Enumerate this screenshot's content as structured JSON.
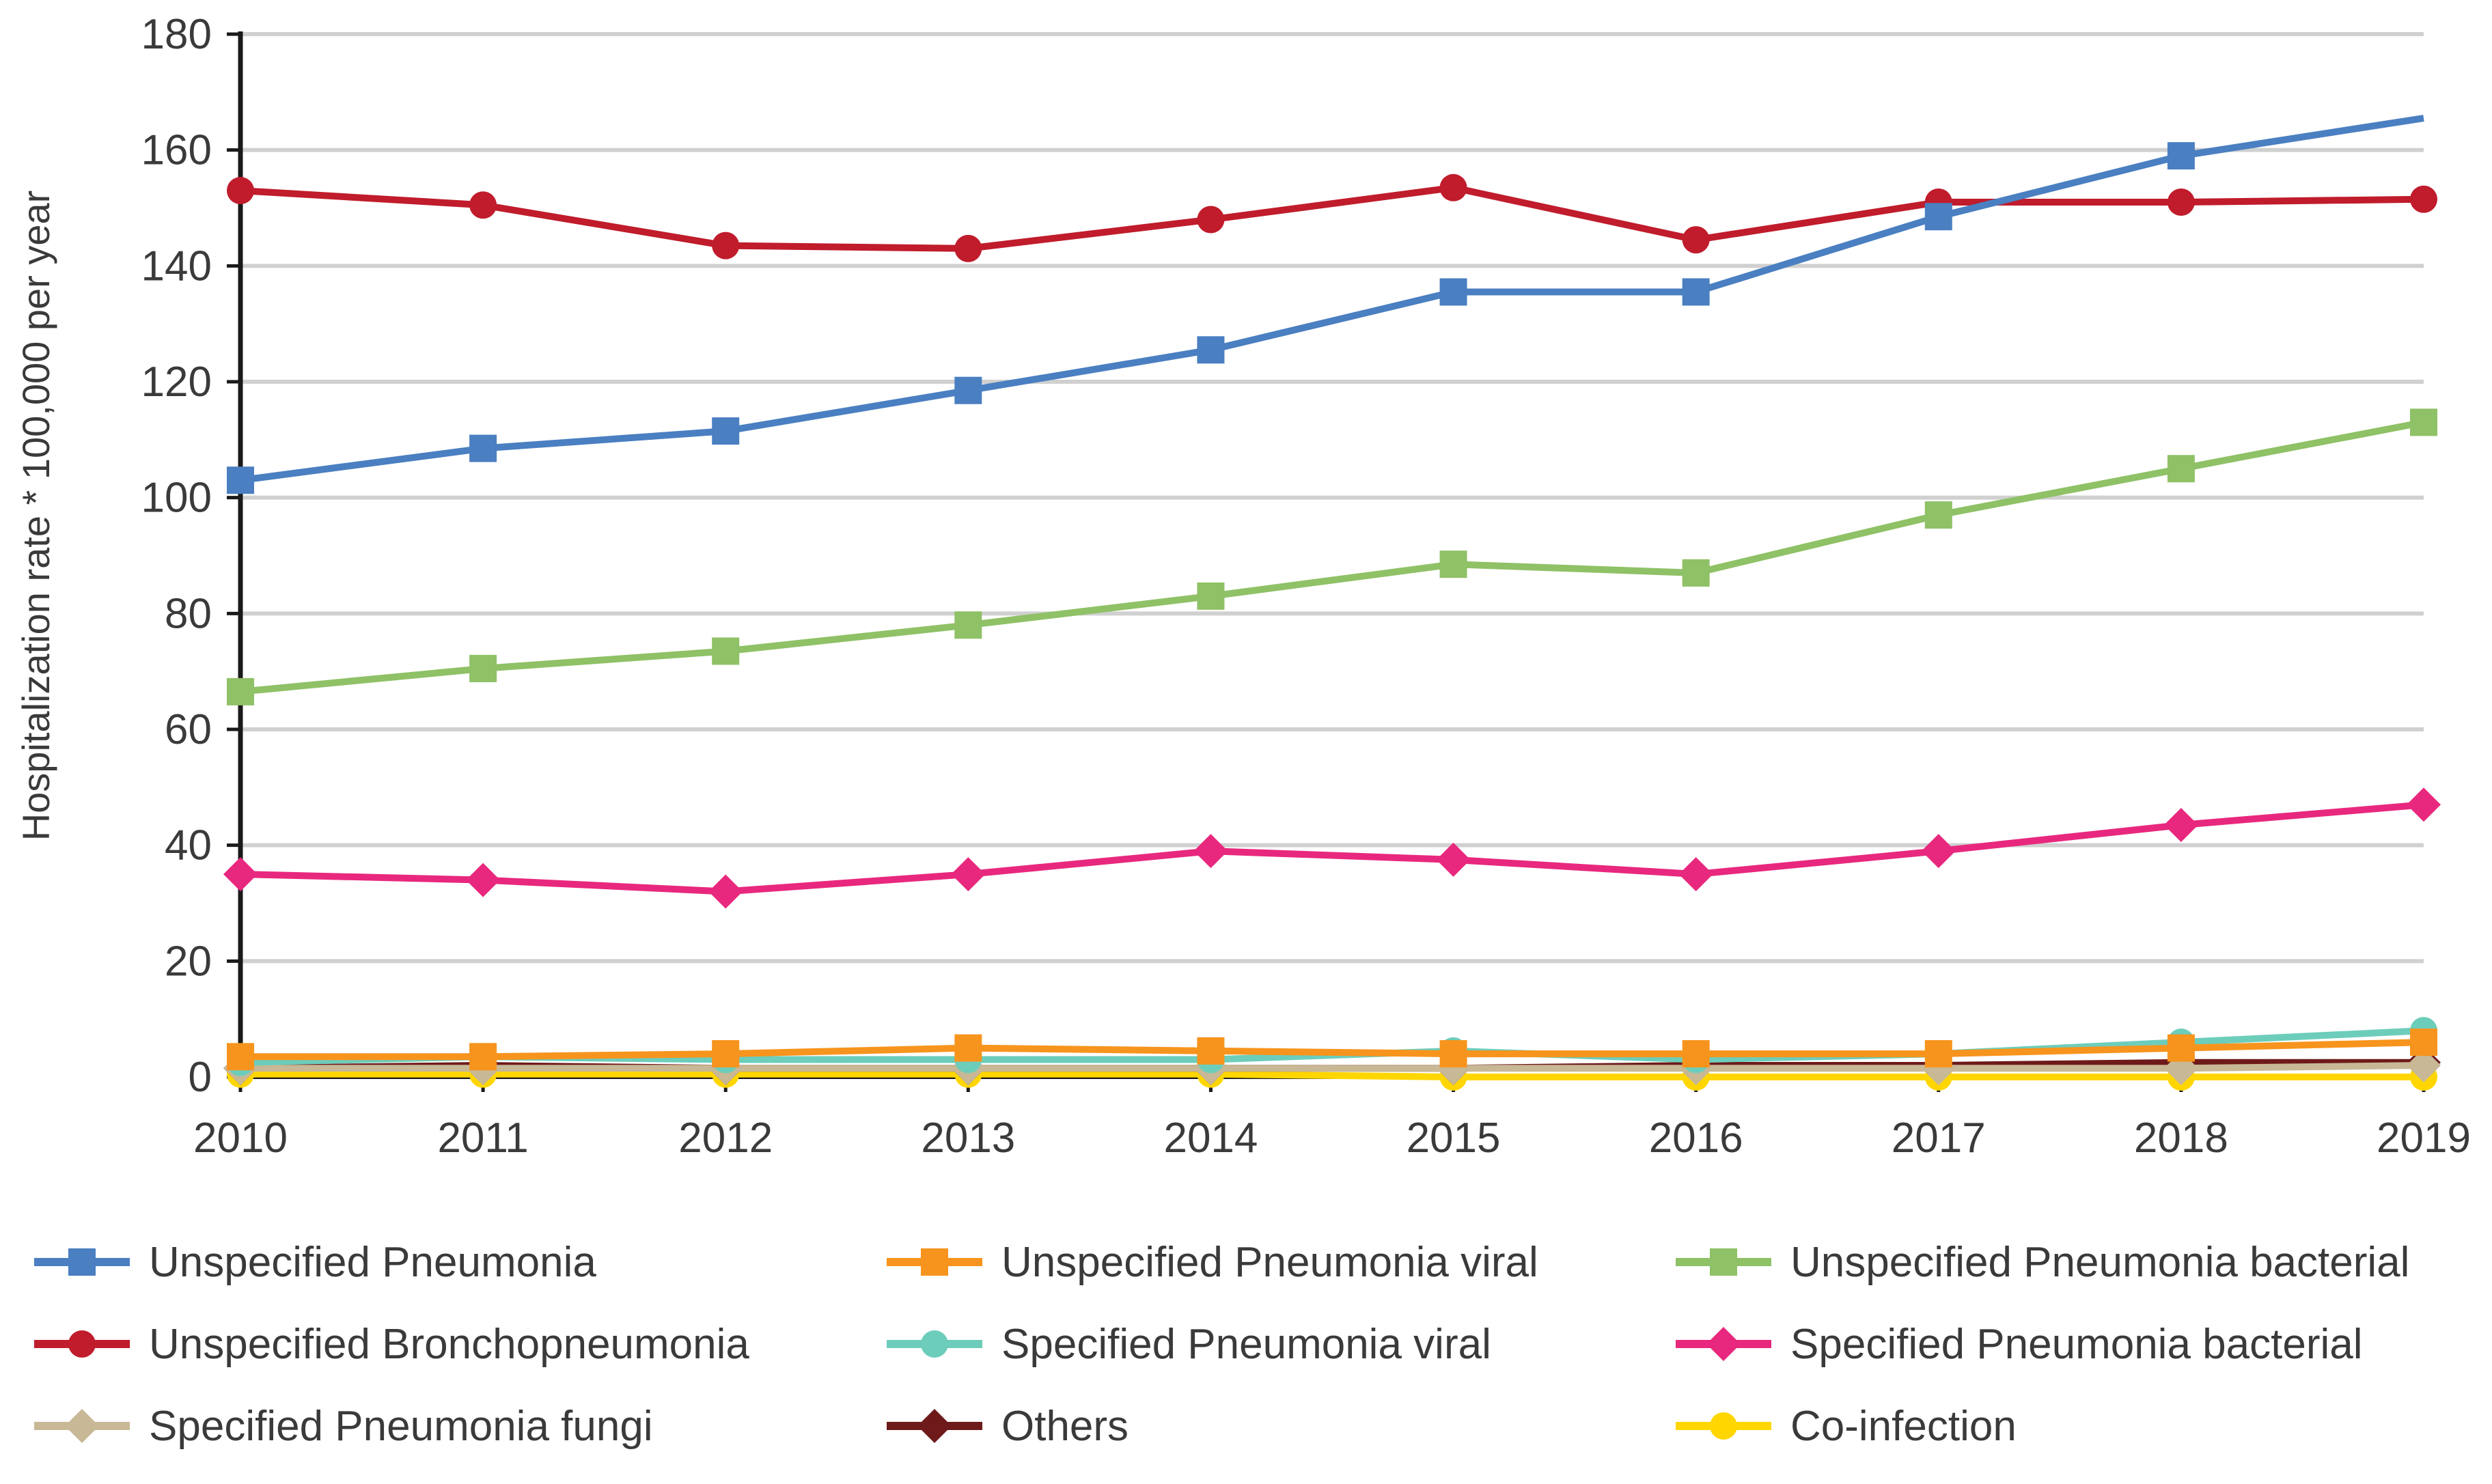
{
  "chart_data": {
    "type": "line",
    "title": "",
    "xlabel": "",
    "ylabel": "Hospitalization rate * 100,000 per year",
    "ylim": [
      0,
      180
    ],
    "yticks": [
      0,
      20,
      40,
      60,
      80,
      100,
      120,
      140,
      160,
      180
    ],
    "grid": true,
    "legend_position": "bottom",
    "x": [
      "2010",
      "2011",
      "2012",
      "2013",
      "2014",
      "2015",
      "2016",
      "2017",
      "2018",
      "2019"
    ],
    "series": [
      {
        "name": "Unspecified Pneumonia",
        "color": "#4a7fc1",
        "marker": "square",
        "values": [
          103,
          108.5,
          111.5,
          118.5,
          125.5,
          135.5,
          135.5,
          148.5,
          159,
          165.5
        ]
      },
      {
        "name": "Unspecified Pneumonia viral",
        "color": "#f7941d",
        "marker": "square",
        "values": [
          3.5,
          3.5,
          4,
          5,
          4.5,
          4,
          4,
          4,
          5,
          6
        ]
      },
      {
        "name": "Unspecified Pneumonia bacterial",
        "color": "#8fc166",
        "marker": "square",
        "values": [
          66.5,
          70.5,
          73.5,
          78,
          83,
          88.5,
          87,
          97,
          105,
          113
        ]
      },
      {
        "name": "Unspecified Bronchopneumonia",
        "color": "#c01c2c",
        "marker": "circle",
        "values": [
          153,
          150.5,
          143.5,
          143,
          148,
          153.5,
          144.5,
          151,
          151,
          151.5
        ]
      },
      {
        "name": "Specified Pneumonia viral",
        "color": "#6dcdbb",
        "marker": "circle",
        "values": [
          2.5,
          3.5,
          3,
          3,
          3,
          4.5,
          3,
          4,
          6,
          8
        ]
      },
      {
        "name": "Specified Pneumonia bacterial",
        "color": "#e8287e",
        "marker": "diamond",
        "values": [
          35,
          34,
          32,
          35,
          39,
          37.5,
          35,
          39,
          43.5,
          47
        ]
      },
      {
        "name": "Specified Pneumonia fungi",
        "color": "#c8b896",
        "marker": "diamond",
        "values": [
          1.5,
          1.5,
          1.5,
          1.5,
          1.5,
          1.5,
          1.5,
          1.5,
          1.5,
          2
        ]
      },
      {
        "name": "Others",
        "color": "#6e1a1a",
        "marker": "diamond",
        "values": [
          1.5,
          2,
          1.5,
          1.5,
          1.5,
          1.5,
          2,
          2,
          2.5,
          2.5
        ]
      },
      {
        "name": "Co-infection",
        "color": "#ffd600",
        "marker": "circle",
        "values": [
          0.5,
          0.5,
          0.5,
          0.5,
          0.5,
          0,
          0,
          0,
          0,
          0
        ]
      }
    ]
  }
}
